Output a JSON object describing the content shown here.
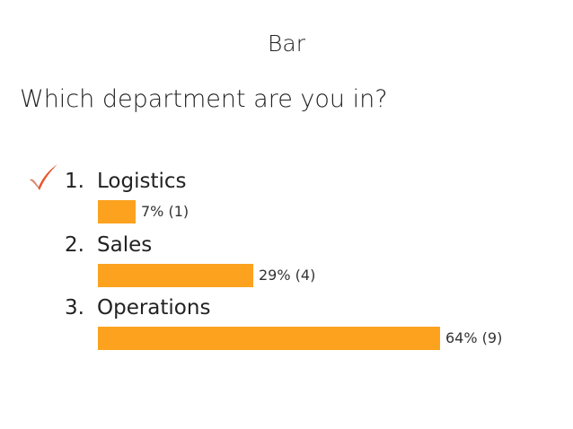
{
  "slide": {
    "title": "Bar",
    "question": "Which department are you in?"
  },
  "colors": {
    "bar": "#fca21f",
    "check": "#e8552b"
  },
  "chart_data": {
    "type": "bar",
    "orientation": "horizontal",
    "categories": [
      "Logistics",
      "Sales",
      "Operations"
    ],
    "numbers": [
      "1.",
      "2.",
      "3."
    ],
    "percent_values": [
      7,
      29,
      64
    ],
    "count_values": [
      1,
      4,
      9
    ],
    "value_labels": [
      "7% (1)",
      "29% (4)",
      "64% (9)"
    ],
    "correct_index": 0,
    "xlim": [
      0,
      100
    ]
  }
}
